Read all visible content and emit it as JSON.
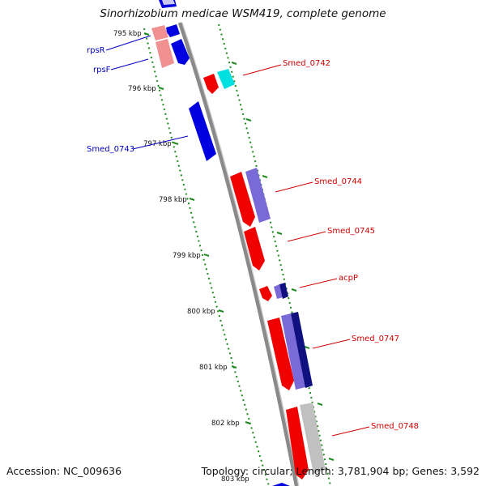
{
  "title": "Sinorhizobium medicae WSM419, complete genome",
  "accession_text": "Accession: NC_009636",
  "topology_text": "Topology: circular; Length: 3,781,904 bp; Genes: 3,592",
  "colors": {
    "backbone": "#8a8a8a",
    "tick": "#1f8a1f",
    "reverse_label": "#0000c0",
    "forward_label": "#d00000"
  },
  "ticks": [
    "795 kbp",
    "796 kbp",
    "797 kbp",
    "798 kbp",
    "799 kbp",
    "800 kbp",
    "801 kbp",
    "802 kbp",
    "803 kbp"
  ],
  "genes_left": [
    {
      "name": "rpsR",
      "color": "#0000c0"
    },
    {
      "name": "rpsF",
      "color": "#0000c0"
    },
    {
      "name": "Smed_0743",
      "color": "#0000c0"
    }
  ],
  "genes_right": [
    {
      "name": "Smed_0742",
      "color": "#d00000"
    },
    {
      "name": "Smed_0744",
      "color": "#d00000"
    },
    {
      "name": "Smed_0745",
      "color": "#d00000"
    },
    {
      "name": "acpP",
      "color": "#d00000"
    },
    {
      "name": "Smed_0747",
      "color": "#d00000"
    },
    {
      "name": "Smed_0748",
      "color": "#d00000"
    }
  ]
}
